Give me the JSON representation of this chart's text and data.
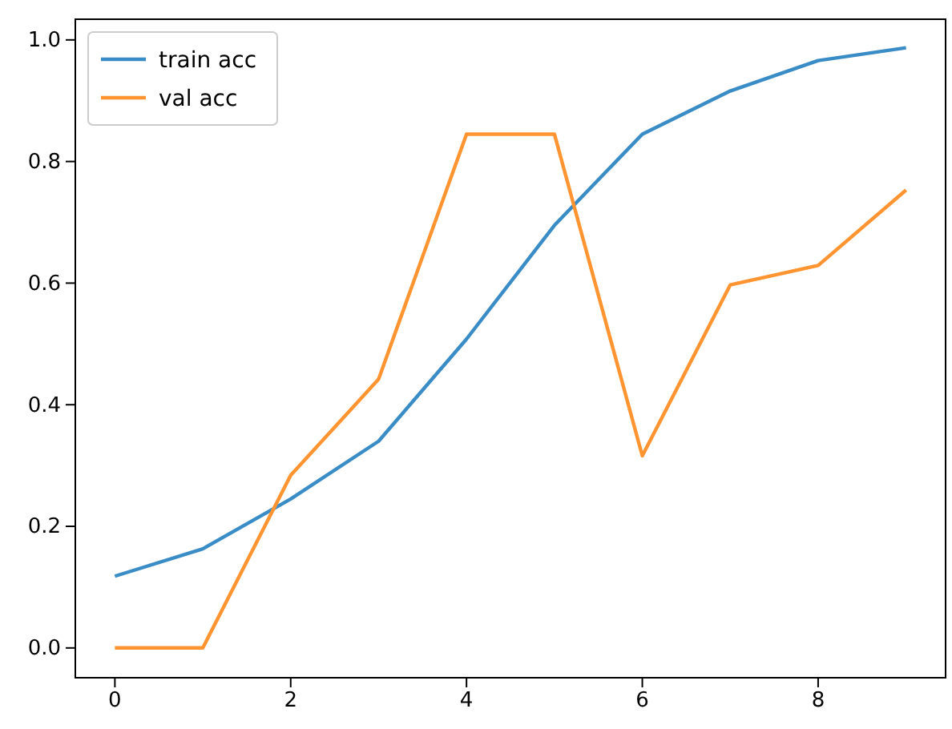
{
  "chart_data": {
    "type": "line",
    "x": [
      0,
      1,
      2,
      3,
      4,
      5,
      6,
      7,
      8,
      9
    ],
    "series": [
      {
        "name": "train acc",
        "color": "#3a8cc6",
        "values": [
          0.118,
          0.163,
          0.245,
          0.34,
          0.508,
          0.695,
          0.845,
          0.916,
          0.966,
          0.987
        ]
      },
      {
        "name": "val acc",
        "color": "#ff9431",
        "values": [
          0,
          0,
          0.284,
          0.442,
          0.845,
          0.845,
          0.316,
          0.597,
          0.629,
          0.753
        ]
      }
    ],
    "xlim": [
      -0.45,
      9.45
    ],
    "xticks": [
      0,
      2,
      4,
      6,
      8
    ],
    "ylim": [
      -0.049,
      1.034
    ],
    "yticks": [
      {
        "value": 0,
        "label": "0.0"
      },
      {
        "value": 0.2,
        "label": "0.2"
      },
      {
        "value": 0.4,
        "label": "0.4"
      },
      {
        "value": 0.6,
        "label": "0.6"
      },
      {
        "value": 0.8,
        "label": "0.8"
      },
      {
        "value": 1,
        "label": "1.0"
      }
    ],
    "legend": "top left",
    "grid": false,
    "line_style": "solid",
    "marker": "none"
  }
}
